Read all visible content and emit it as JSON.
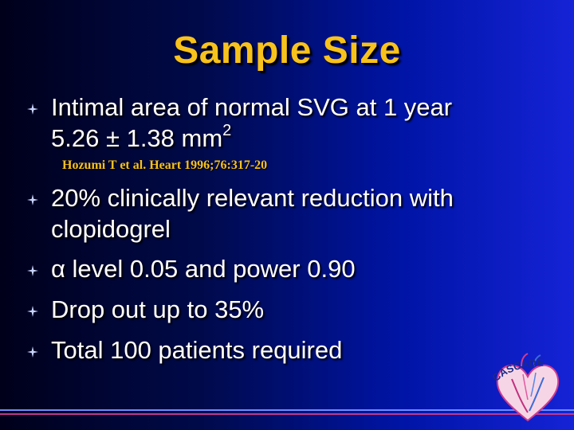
{
  "slide": {
    "title": "Sample Size",
    "bullets": [
      {
        "line1": "Intimal area of normal SVG at 1 year",
        "line2_prefix": "5.26 ± 1.38 mm",
        "line2_sup": "2"
      },
      {
        "text": "20% clinically relevant reduction with clopidogrel"
      },
      {
        "text": "α level 0.05 and power 0.90"
      },
      {
        "text": "Drop out up to 35%"
      },
      {
        "text": "Total 100 patients required"
      }
    ],
    "citation": "Hozumi T et al. Heart 1996;76:317-20",
    "logo_text": "CASCADE"
  },
  "colors": {
    "title": "#f8c21c",
    "text": "#ffffff",
    "citation": "#f8c21c",
    "footer_line_1": "#6b8cff",
    "footer_line_2": "#c0388c"
  },
  "icons": {
    "bullet": "four-point-star-icon",
    "logo": "cascade-heart-logo"
  }
}
